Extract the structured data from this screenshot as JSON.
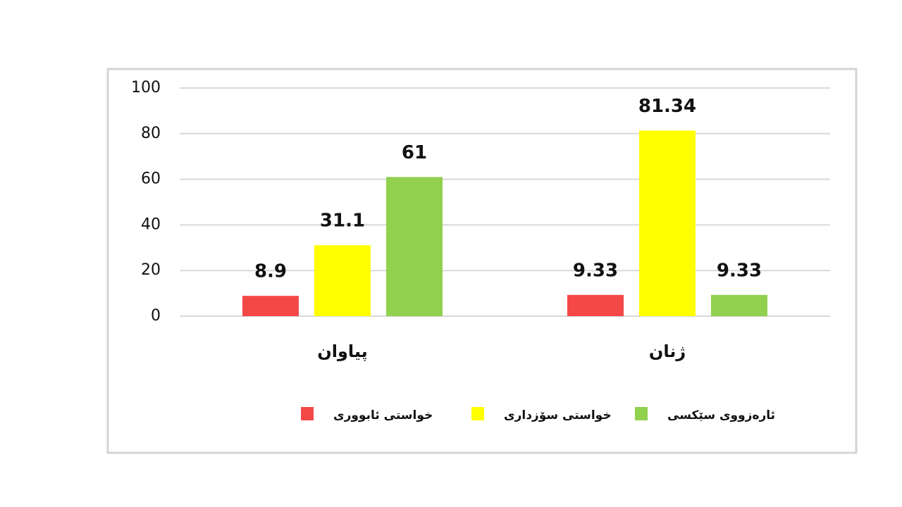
{
  "chart_data": {
    "type": "bar",
    "categories": [
      "پیاوان",
      "ژنان"
    ],
    "series": [
      {
        "name": "خواستی ئابووری",
        "color": "#f44848",
        "values": [
          8.9,
          9.33
        ]
      },
      {
        "name": "خواستی سۆزداری",
        "color": "#ffff00",
        "values": [
          31.1,
          81.34
        ]
      },
      {
        "name": "ئارەزووی سێکسی",
        "color": "#92d050",
        "values": [
          61,
          9.33
        ]
      }
    ],
    "ylim": [
      0,
      100
    ],
    "yticks": [
      0,
      20,
      40,
      60,
      80,
      100
    ],
    "grid": true,
    "legend": "bottom"
  }
}
